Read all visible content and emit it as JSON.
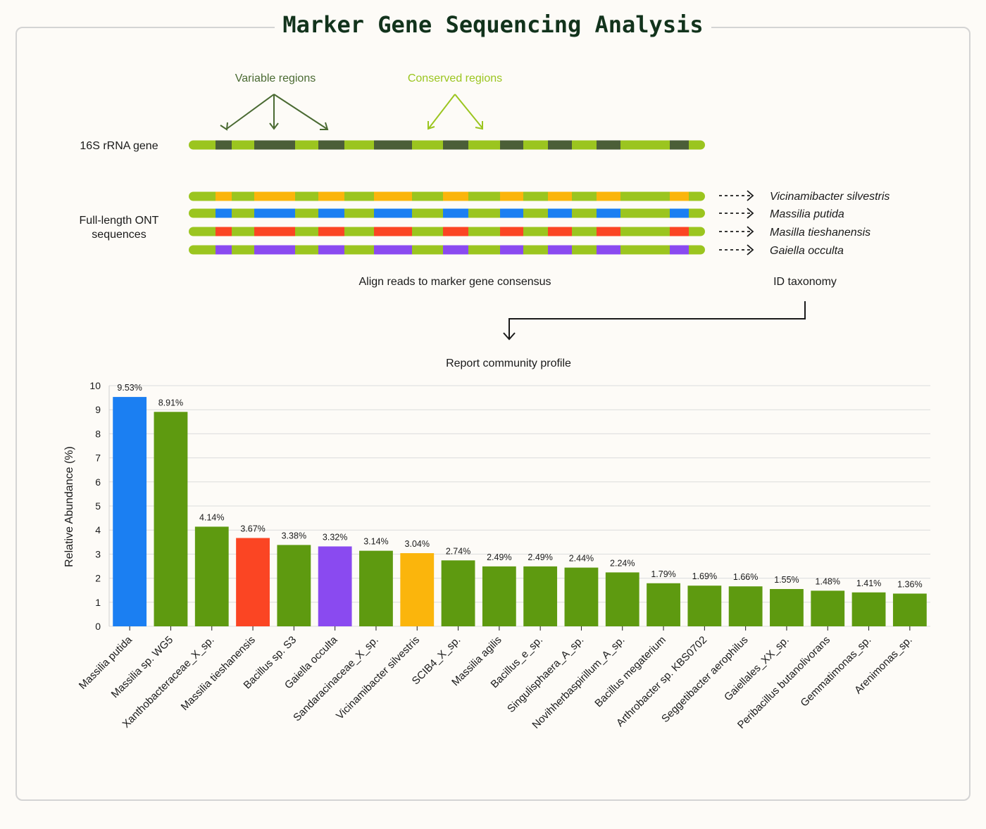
{
  "title": "Marker Gene Sequencing Analysis",
  "colors": {
    "light_green": "#9bc51f",
    "dark_green": "#4b5e38",
    "bar_green": "#5e9a10",
    "blue": "#1b7ff2",
    "red": "#fb4523",
    "purple": "#8a4af0",
    "orange": "#fbb50c",
    "variable_label": "#4a6a32",
    "conserved_label": "#9bc51f"
  },
  "diagram": {
    "variable_regions_label": "Variable regions",
    "conserved_regions_label": "Conserved regions",
    "gene_label": "16S rRNA gene",
    "ont_label_line1": "Full-length ONT",
    "ont_label_line2": "sequences",
    "align_label": "Align reads to marker gene consensus",
    "id_taxonomy_label": "ID taxonomy",
    "report_label": "Report community profile",
    "taxa": [
      {
        "name": "Vicinamibacter silvestris",
        "color": "#fbb50c"
      },
      {
        "name": "Massilia putida",
        "color": "#1b7ff2"
      },
      {
        "name": "Masilla tieshanensis",
        "color": "#fb4523"
      },
      {
        "name": "Gaiella occulta",
        "color": "#8a4af0"
      }
    ]
  },
  "chart_data": {
    "type": "bar",
    "ylabel": "Relative Abundance (%)",
    "xlabel": "",
    "ylim": [
      0,
      10
    ],
    "yticks": [
      0,
      1,
      2,
      3,
      4,
      5,
      6,
      7,
      8,
      9,
      10
    ],
    "grid": true,
    "categories": [
      "Massilia putida",
      "Massilia sp. WG5",
      "Xanthobacteraceae_X_sp.",
      "Massilia tieshanensis",
      "Bacillus sp. S3",
      "Gaiella occulta",
      "Sandaracinaceae_X_sp.",
      "Vicinamibacter silvestris",
      "SCIB4_X_sp.",
      "Massilia agilis",
      "Bacillus_e_sp.",
      "Singulisphaera_A_sp.",
      "Novihherbaspirillum_A_sp.",
      "Bacillus megaterium",
      "Arthrobacter sp. KBS0702",
      "Seggetibacter aerophilus",
      "Gaiellales_XX_sp.",
      "Peribacillus butanolivorans",
      "Gemmatimonas_sp.",
      "Arenimonas_sp."
    ],
    "values": [
      9.53,
      8.91,
      4.14,
      3.67,
      3.38,
      3.32,
      3.14,
      3.04,
      2.74,
      2.49,
      2.49,
      2.44,
      2.24,
      1.79,
      1.69,
      1.66,
      1.55,
      1.48,
      1.41,
      1.36
    ],
    "value_labels": [
      "9.53%",
      "8.91%",
      "4.14%",
      "3.67%",
      "3.38%",
      "3.32%",
      "3.14%",
      "3.04%",
      "2.74%",
      "2.49%",
      "2.49%",
      "2.44%",
      "2.24%",
      "1.79%",
      "1.69%",
      "1.66%",
      "1.55%",
      "1.48%",
      "1.41%",
      "1.36%"
    ],
    "bar_colors": [
      "#1b7ff2",
      "#5e9a10",
      "#5e9a10",
      "#fb4523",
      "#5e9a10",
      "#8a4af0",
      "#5e9a10",
      "#fbb50c",
      "#5e9a10",
      "#5e9a10",
      "#5e9a10",
      "#5e9a10",
      "#5e9a10",
      "#5e9a10",
      "#5e9a10",
      "#5e9a10",
      "#5e9a10",
      "#5e9a10",
      "#5e9a10",
      "#5e9a10"
    ]
  }
}
